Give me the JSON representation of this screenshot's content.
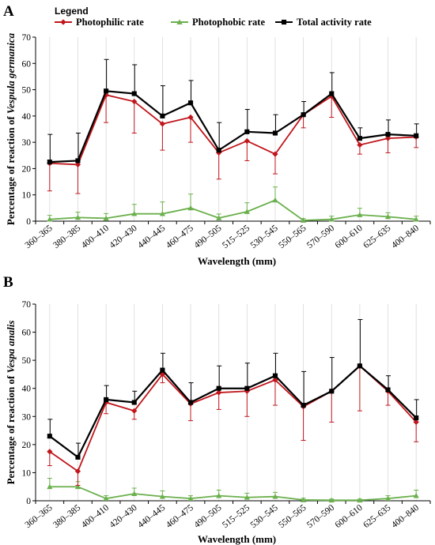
{
  "legend": {
    "title": "Legend",
    "entries": [
      {
        "name": "Photophilic rate",
        "color": "#c0161c",
        "marker": "diamond"
      },
      {
        "name": "Photophobic rate",
        "color": "#6ab04c",
        "marker": "triangle"
      },
      {
        "name": "Total activity rate",
        "color": "#000000",
        "marker": "square"
      }
    ]
  },
  "chart_data": [
    {
      "panel": "A",
      "type": "line",
      "xlabel": "Wavelength (mm)",
      "ylabel_prefix": "Percentage of reaction of ",
      "ylabel_species": "Vespula germanica",
      "ylim": [
        0,
        70
      ],
      "yticks": [
        0,
        10,
        20,
        30,
        40,
        50,
        60,
        70
      ],
      "categories": [
        "360–365",
        "380–385",
        "400–410",
        "420–430",
        "440–445",
        "460–475",
        "490–505",
        "515–525",
        "530–545",
        "550–565",
        "570–590",
        "600–610",
        "625–635",
        "400–840"
      ],
      "series": [
        {
          "name": "Photophilic rate",
          "color": "#c0161c",
          "marker": "diamond",
          "values": [
            22,
            21.5,
            48,
            45.5,
            37,
            39.5,
            26,
            30.5,
            25.5,
            40.5,
            47.5,
            29,
            31.5,
            32
          ],
          "errors": [
            10.5,
            11,
            10.5,
            12,
            10,
            9.5,
            10,
            7.5,
            7.5,
            5,
            8,
            3.5,
            5.5,
            4
          ]
        },
        {
          "name": "Photophobic rate",
          "color": "#6ab04c",
          "marker": "triangle",
          "values": [
            0.7,
            1.4,
            1.1,
            2.8,
            2.8,
            5,
            1.2,
            3.6,
            8,
            0.3,
            0.7,
            2.4,
            1.7,
            0.7
          ],
          "errors": [
            1.5,
            2,
            1.8,
            3.6,
            4.5,
            5.3,
            1.5,
            3.4,
            5,
            0.7,
            1.2,
            2.5,
            1.5,
            1.2
          ]
        },
        {
          "name": "Total activity rate",
          "color": "#000000",
          "marker": "square",
          "values": [
            22.5,
            23,
            49.5,
            48.5,
            40,
            45,
            27,
            34,
            33.5,
            40.5,
            48.5,
            31.5,
            33,
            32.5
          ],
          "errors": [
            10.5,
            10.5,
            12,
            11,
            11.5,
            8.5,
            10.5,
            8.5,
            7,
            5,
            8,
            4,
            5.5,
            4.5
          ]
        }
      ]
    },
    {
      "panel": "B",
      "type": "line",
      "xlabel": "Wavelength (mm)",
      "ylabel_prefix": "Percentage of reaction of ",
      "ylabel_species": "Vespa analis",
      "ylim": [
        0,
        70
      ],
      "yticks": [
        0,
        10,
        20,
        30,
        40,
        50,
        60,
        70
      ],
      "categories": [
        "360–365",
        "380–385",
        "400–410",
        "420–430",
        "440–445",
        "460–475",
        "490–505",
        "515–525",
        "530–545",
        "550–565",
        "570–590",
        "600–610",
        "625–635",
        "400–840"
      ],
      "series": [
        {
          "name": "Photophilic rate",
          "color": "#c0161c",
          "marker": "diamond",
          "values": [
            17.5,
            10.5,
            35,
            32,
            45,
            34.5,
            38.5,
            39,
            43,
            33.5,
            39,
            48,
            39,
            28
          ],
          "errors": [
            5,
            5,
            4,
            3,
            3,
            6,
            6,
            9,
            9,
            12,
            11,
            16,
            5,
            7
          ]
        },
        {
          "name": "Photophobic rate",
          "color": "#6ab04c",
          "marker": "triangle",
          "values": [
            5,
            5,
            0.8,
            2.5,
            1.5,
            0.8,
            1.8,
            1.2,
            1.5,
            0.3,
            0.2,
            0.2,
            0.8,
            1.8
          ],
          "errors": [
            3,
            1.8,
            1,
            2,
            2,
            1,
            2,
            1.5,
            1.5,
            0.6,
            0.4,
            0.4,
            1,
            2
          ]
        },
        {
          "name": "Total activity rate",
          "color": "#000000",
          "marker": "square",
          "values": [
            23,
            15.5,
            36,
            35,
            46.5,
            35,
            40,
            40,
            44.5,
            34,
            39,
            48,
            39.5,
            29.5
          ],
          "errors": [
            6,
            5,
            5,
            4,
            6,
            7,
            8,
            9,
            8,
            12,
            12,
            16.5,
            5,
            6.5
          ]
        }
      ]
    }
  ]
}
